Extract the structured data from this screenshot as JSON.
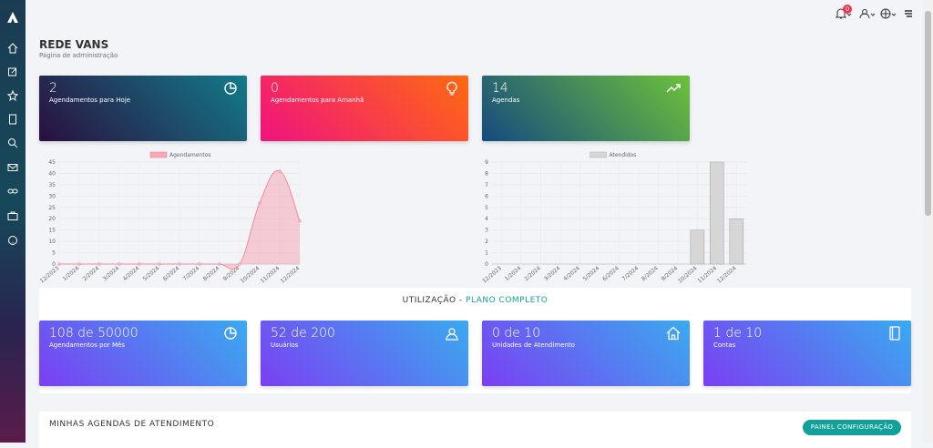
{
  "header": {
    "title": "REDE VANS",
    "subtitle": "Página de administração",
    "notification_count": "0"
  },
  "cards": [
    {
      "value": "2",
      "label": "Agendamentos para Hoje"
    },
    {
      "value": "0",
      "label": "Agendamentos para Amanhã"
    },
    {
      "value": "14",
      "label": "Agendas"
    }
  ],
  "chart_data": [
    {
      "type": "line",
      "series": [
        {
          "name": "Agendamentos",
          "color": "#f4a8b8",
          "values": [
            0,
            0,
            0,
            0,
            0,
            0,
            0,
            0,
            0,
            0,
            27,
            41,
            19
          ]
        }
      ],
      "categories": [
        "12/2023",
        "1/2024",
        "2/2024",
        "3/2024",
        "4/2024",
        "5/2024",
        "6/2024",
        "7/2024",
        "8/2024",
        "9/2024",
        "10/2024",
        "11/2024",
        "12/2024"
      ],
      "ylim": [
        0,
        45
      ],
      "yticks": [
        0,
        5,
        10,
        15,
        20,
        25,
        30,
        35,
        40,
        45
      ],
      "grid": true
    },
    {
      "type": "bar",
      "series": [
        {
          "name": "Atendidos",
          "color": "#d6d6d6",
          "values": [
            0,
            0,
            0,
            0,
            0,
            0,
            0,
            0,
            0,
            0,
            3,
            9,
            4
          ]
        }
      ],
      "categories": [
        "12/2023",
        "1/2024",
        "2/2024",
        "3/2024",
        "4/2024",
        "5/2024",
        "6/2024",
        "7/2024",
        "8/2024",
        "9/2024",
        "10/2024",
        "11/2024",
        "12/2024"
      ],
      "ylim": [
        0,
        9
      ],
      "yticks": [
        0,
        1,
        2,
        3,
        4,
        5,
        6,
        7,
        8,
        9
      ],
      "grid": true
    }
  ],
  "usage": {
    "title": "UTILIZAÇÃO -",
    "plan": "PLANO COMPLETO",
    "cards": [
      {
        "value": "108 de 50000",
        "label": "Agendamentos por Mês"
      },
      {
        "value": "52 de 200",
        "label": "Usuários"
      },
      {
        "value": "0 de 10",
        "label": "Unidades de Atendimento"
      },
      {
        "value": "1 de 10",
        "label": "Contas"
      }
    ]
  },
  "agendas": {
    "title": "MINHAS AGENDAS DE ATENDIMENTO",
    "button": "PAINEL CONFIGURAÇÃO"
  }
}
